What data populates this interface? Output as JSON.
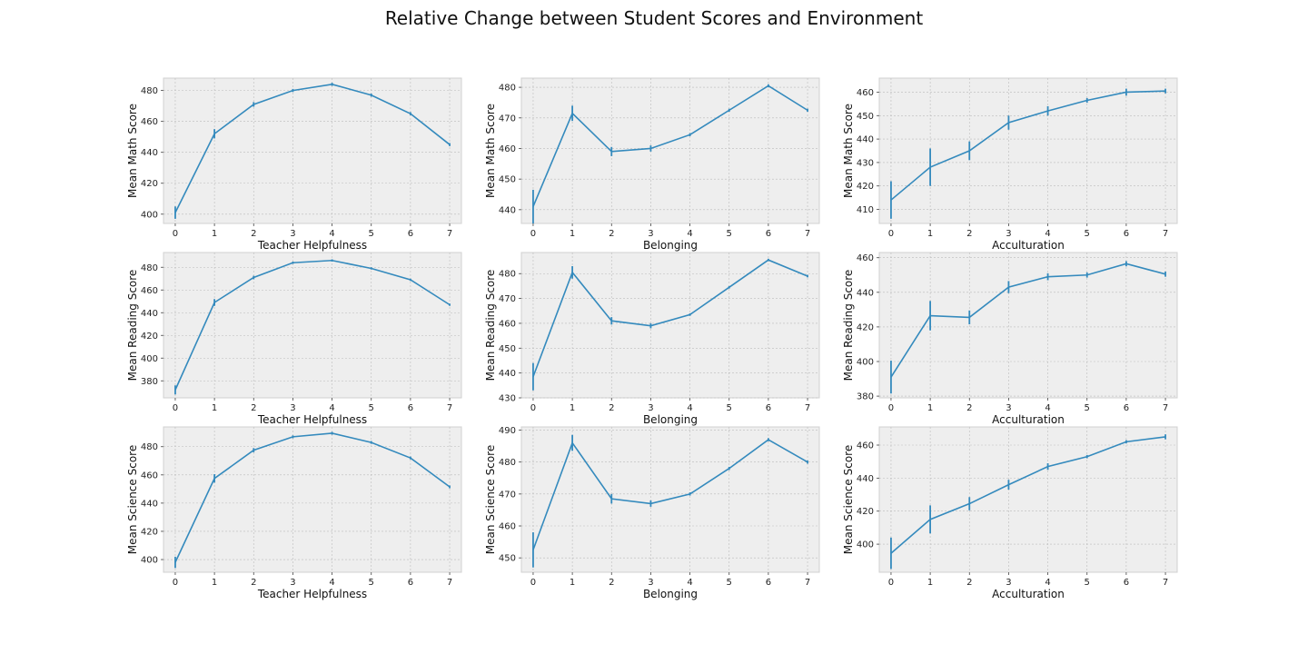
{
  "figure": {
    "title": "Relative Change between Student Scores and Environment"
  },
  "style": {
    "plot_bg": "#eeeeee",
    "grid_color": "#bbbbbb",
    "line_color": "#348abd"
  },
  "chart_data": [
    {
      "type": "line",
      "row": 0,
      "col": 0,
      "xlabel": "Teacher Helpfulness",
      "ylabel": "Mean Math Score",
      "xlim": [
        -0.3,
        7.3
      ],
      "ylim": [
        394,
        488
      ],
      "xticks": [
        0,
        1,
        2,
        3,
        4,
        5,
        6,
        7
      ],
      "yticks": [
        400,
        420,
        440,
        460,
        480
      ],
      "x": [
        0,
        1,
        2,
        3,
        4,
        5,
        6,
        7
      ],
      "y": [
        401,
        452,
        471,
        480,
        484,
        477,
        465,
        445
      ],
      "err": [
        4,
        3,
        1.5,
        1,
        1,
        1,
        1,
        1
      ]
    },
    {
      "type": "line",
      "row": 0,
      "col": 1,
      "xlabel": "Belonging",
      "ylabel": "Mean Math Score",
      "xlim": [
        -0.3,
        7.3
      ],
      "ylim": [
        435.5,
        483
      ],
      "xticks": [
        0,
        1,
        2,
        3,
        4,
        5,
        6,
        7
      ],
      "yticks": [
        440,
        450,
        460,
        470,
        480
      ],
      "x": [
        0,
        1,
        2,
        3,
        4,
        5,
        6,
        7
      ],
      "y": [
        441,
        471.5,
        459,
        460,
        464.5,
        472.5,
        480.5,
        472.5
      ],
      "err": [
        5.5,
        2.5,
        1.5,
        1,
        0.5,
        0.5,
        0.5,
        0.5
      ]
    },
    {
      "type": "line",
      "row": 0,
      "col": 2,
      "xlabel": "Acculturation",
      "ylabel": "Mean Math Score",
      "xlim": [
        -0.3,
        7.3
      ],
      "ylim": [
        404,
        466
      ],
      "xticks": [
        0,
        1,
        2,
        3,
        4,
        5,
        6,
        7
      ],
      "yticks": [
        410,
        420,
        430,
        440,
        450,
        460
      ],
      "x": [
        0,
        1,
        2,
        3,
        4,
        5,
        6,
        7
      ],
      "y": [
        414,
        428,
        435,
        447,
        452,
        456.5,
        460,
        460.5
      ],
      "err": [
        8,
        8,
        4,
        3,
        2,
        1,
        1.5,
        1
      ]
    },
    {
      "type": "line",
      "row": 1,
      "col": 0,
      "xlabel": "Teacher Helpfulness",
      "ylabel": "Mean Reading Score",
      "xlim": [
        -0.3,
        7.3
      ],
      "ylim": [
        365,
        493
      ],
      "xticks": [
        0,
        1,
        2,
        3,
        4,
        5,
        6,
        7
      ],
      "yticks": [
        380,
        400,
        420,
        440,
        460,
        480
      ],
      "x": [
        0,
        1,
        2,
        3,
        4,
        5,
        6,
        7
      ],
      "y": [
        372,
        449,
        471,
        484,
        486,
        479,
        469,
        447
      ],
      "err": [
        4,
        3,
        1.5,
        1,
        1,
        1,
        1,
        1
      ]
    },
    {
      "type": "line",
      "row": 1,
      "col": 1,
      "xlabel": "Belonging",
      "ylabel": "Mean Reading Score",
      "xlim": [
        -0.3,
        7.3
      ],
      "ylim": [
        430,
        488.5
      ],
      "xticks": [
        0,
        1,
        2,
        3,
        4,
        5,
        6,
        7
      ],
      "yticks": [
        430,
        440,
        450,
        460,
        470,
        480
      ],
      "x": [
        0,
        1,
        2,
        3,
        4,
        5,
        6,
        7
      ],
      "y": [
        438.5,
        480.5,
        461,
        459,
        463.5,
        474.5,
        485.5,
        479
      ],
      "err": [
        5.5,
        2.5,
        1.5,
        1,
        0.5,
        0.5,
        0.5,
        0.5
      ]
    },
    {
      "type": "line",
      "row": 1,
      "col": 2,
      "xlabel": "Acculturation",
      "ylabel": "Mean Reading Score",
      "xlim": [
        -0.3,
        7.3
      ],
      "ylim": [
        379,
        463
      ],
      "xticks": [
        0,
        1,
        2,
        3,
        4,
        5,
        6,
        7
      ],
      "yticks": [
        380,
        400,
        420,
        440,
        460
      ],
      "x": [
        0,
        1,
        2,
        3,
        4,
        5,
        6,
        7
      ],
      "y": [
        391,
        426.5,
        425.5,
        443,
        449,
        450,
        456.5,
        450.5
      ],
      "err": [
        9.5,
        8.5,
        4,
        3.5,
        2,
        1.5,
        1.5,
        1.5
      ]
    },
    {
      "type": "line",
      "row": 2,
      "col": 0,
      "xlabel": "Teacher Helpfulness",
      "ylabel": "Mean Science Score",
      "xlim": [
        -0.3,
        7.3
      ],
      "ylim": [
        391,
        494
      ],
      "xticks": [
        0,
        1,
        2,
        3,
        4,
        5,
        6,
        7
      ],
      "yticks": [
        400,
        420,
        440,
        460,
        480
      ],
      "x": [
        0,
        1,
        2,
        3,
        4,
        5,
        6,
        7
      ],
      "y": [
        398,
        457.5,
        477.5,
        487,
        489.5,
        483,
        472,
        451.5
      ],
      "err": [
        4,
        3,
        1.5,
        1,
        1,
        1,
        1,
        1
      ]
    },
    {
      "type": "line",
      "row": 2,
      "col": 1,
      "xlabel": "Belonging",
      "ylabel": "Mean Science Score",
      "xlim": [
        -0.3,
        7.3
      ],
      "ylim": [
        445.5,
        491
      ],
      "xticks": [
        0,
        1,
        2,
        3,
        4,
        5,
        6,
        7
      ],
      "yticks": [
        450,
        460,
        470,
        480,
        490
      ],
      "x": [
        0,
        1,
        2,
        3,
        4,
        5,
        6,
        7
      ],
      "y": [
        452.5,
        486,
        468.5,
        467,
        470,
        478,
        487,
        480
      ],
      "err": [
        5.5,
        2.5,
        1.5,
        1,
        0.5,
        0.5,
        0.5,
        0.5
      ]
    },
    {
      "type": "line",
      "row": 2,
      "col": 2,
      "xlabel": "Acculturation",
      "ylabel": "Mean Science Score",
      "xlim": [
        -0.3,
        7.3
      ],
      "ylim": [
        383,
        471
      ],
      "xticks": [
        0,
        1,
        2,
        3,
        4,
        5,
        6,
        7
      ],
      "yticks": [
        400,
        420,
        440,
        460
      ],
      "x": [
        0,
        1,
        2,
        3,
        4,
        5,
        6,
        7
      ],
      "y": [
        394.5,
        415,
        424.5,
        436,
        447,
        453,
        462,
        465
      ],
      "err": [
        9.5,
        8.5,
        4,
        3,
        2,
        1,
        1,
        1.5
      ]
    }
  ]
}
